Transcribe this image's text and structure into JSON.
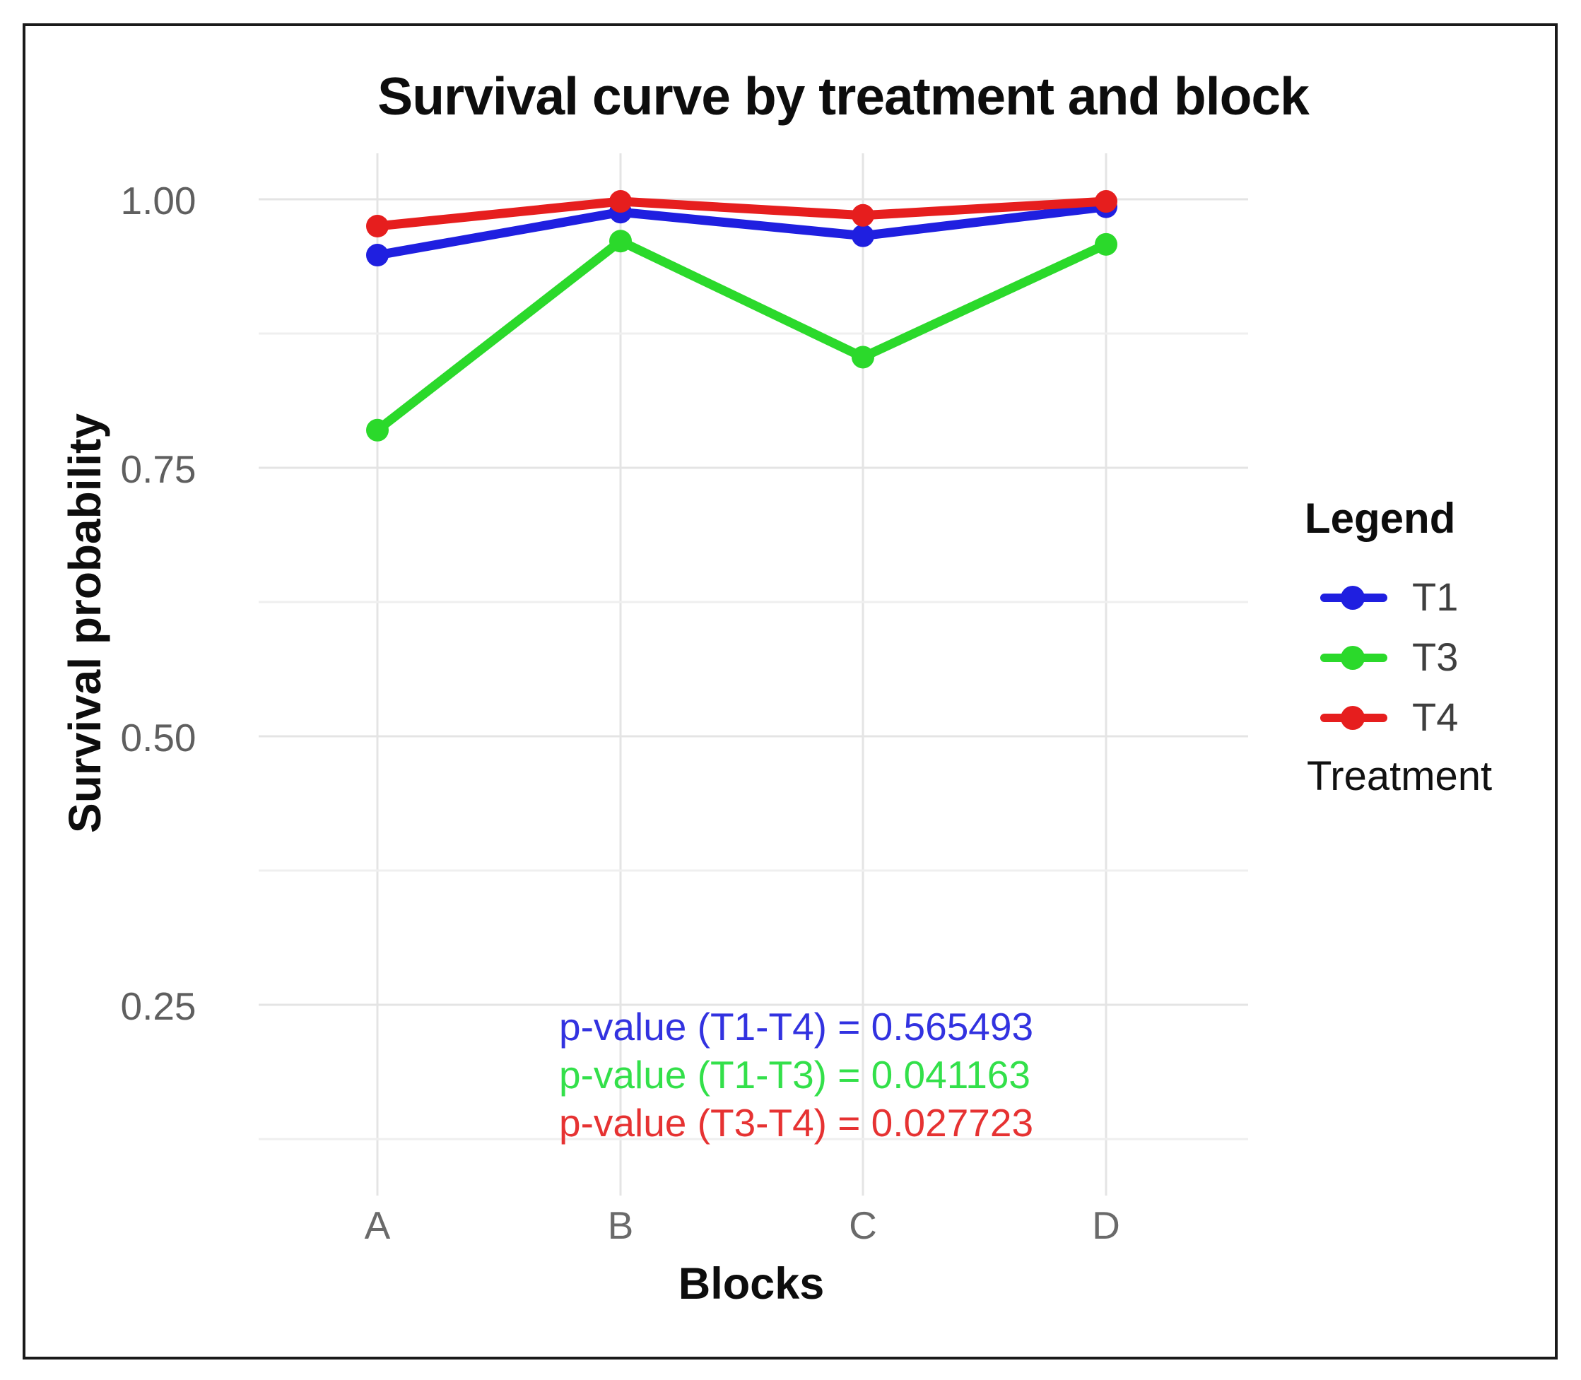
{
  "window": {
    "background": "#ffffff",
    "border_color": "#1a1a1a"
  },
  "chart_data": {
    "type": "line",
    "title": "Survival curve by treatment and block",
    "xlabel": "Blocks",
    "ylabel": "Survival probability",
    "categories": [
      "A",
      "B",
      "C",
      "D"
    ],
    "y_tick_labels": [
      "1.00",
      "0.75",
      "0.50",
      "0.25"
    ],
    "y_tick_values": [
      1.0,
      0.75,
      0.5,
      0.25
    ],
    "ylim": [
      0.07,
      1.04
    ],
    "grid": true,
    "gridline_color_major": "#e4e4e4",
    "gridline_color_minor": "#efefef",
    "legend_position": "right",
    "series": [
      {
        "name": "T1",
        "color": "#1f1fe0",
        "values": [
          0.948,
          0.988,
          0.966,
          0.993
        ]
      },
      {
        "name": "T3",
        "color": "#2bd92b",
        "values": [
          0.785,
          0.961,
          0.853,
          0.958
        ]
      },
      {
        "name": "T4",
        "color": "#e61e1e",
        "values": [
          0.975,
          0.998,
          0.985,
          0.998
        ]
      }
    ]
  },
  "legend": {
    "title": "Legend",
    "footer": "Treatment"
  },
  "annotations": {
    "p_values": [
      {
        "text": "p-value (T1-T4) = 0.565493",
        "color": "#3232e0"
      },
      {
        "text": "p-value (T1-T3) = 0.041163",
        "color": "#33e04a"
      },
      {
        "text": "p-value (T3-T4) = 0.027723",
        "color": "#e63232"
      }
    ]
  }
}
